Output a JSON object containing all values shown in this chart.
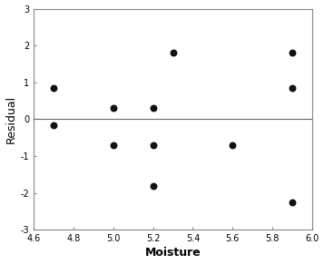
{
  "x": [
    4.7,
    4.7,
    5.0,
    5.0,
    5.2,
    5.2,
    5.2,
    5.3,
    5.6,
    5.9,
    5.9,
    5.9
  ],
  "y": [
    0.85,
    -0.15,
    0.3,
    -0.7,
    0.3,
    -0.7,
    -1.8,
    1.82,
    -0.7,
    1.82,
    0.85,
    -2.25
  ],
  "xlabel": "Moisture",
  "ylabel": "Residual",
  "xlim": [
    4.6,
    6.0
  ],
  "ylim": [
    -3,
    3
  ],
  "xticks": [
    4.6,
    4.8,
    5.0,
    5.2,
    5.4,
    5.6,
    5.8,
    6.0
  ],
  "yticks": [
    -3,
    -2,
    -1,
    0,
    1,
    2,
    3
  ],
  "hline_y": 0,
  "dot_color": "#111111",
  "dot_size": 22,
  "background_color": "#ffffff",
  "xlabel_color": "#000000",
  "ylabel_color": "#000000",
  "xlabel_fontsize": 9,
  "ylabel_fontsize": 9,
  "tick_labelsize": 7,
  "spine_color": "#888888",
  "hline_color": "#666666"
}
